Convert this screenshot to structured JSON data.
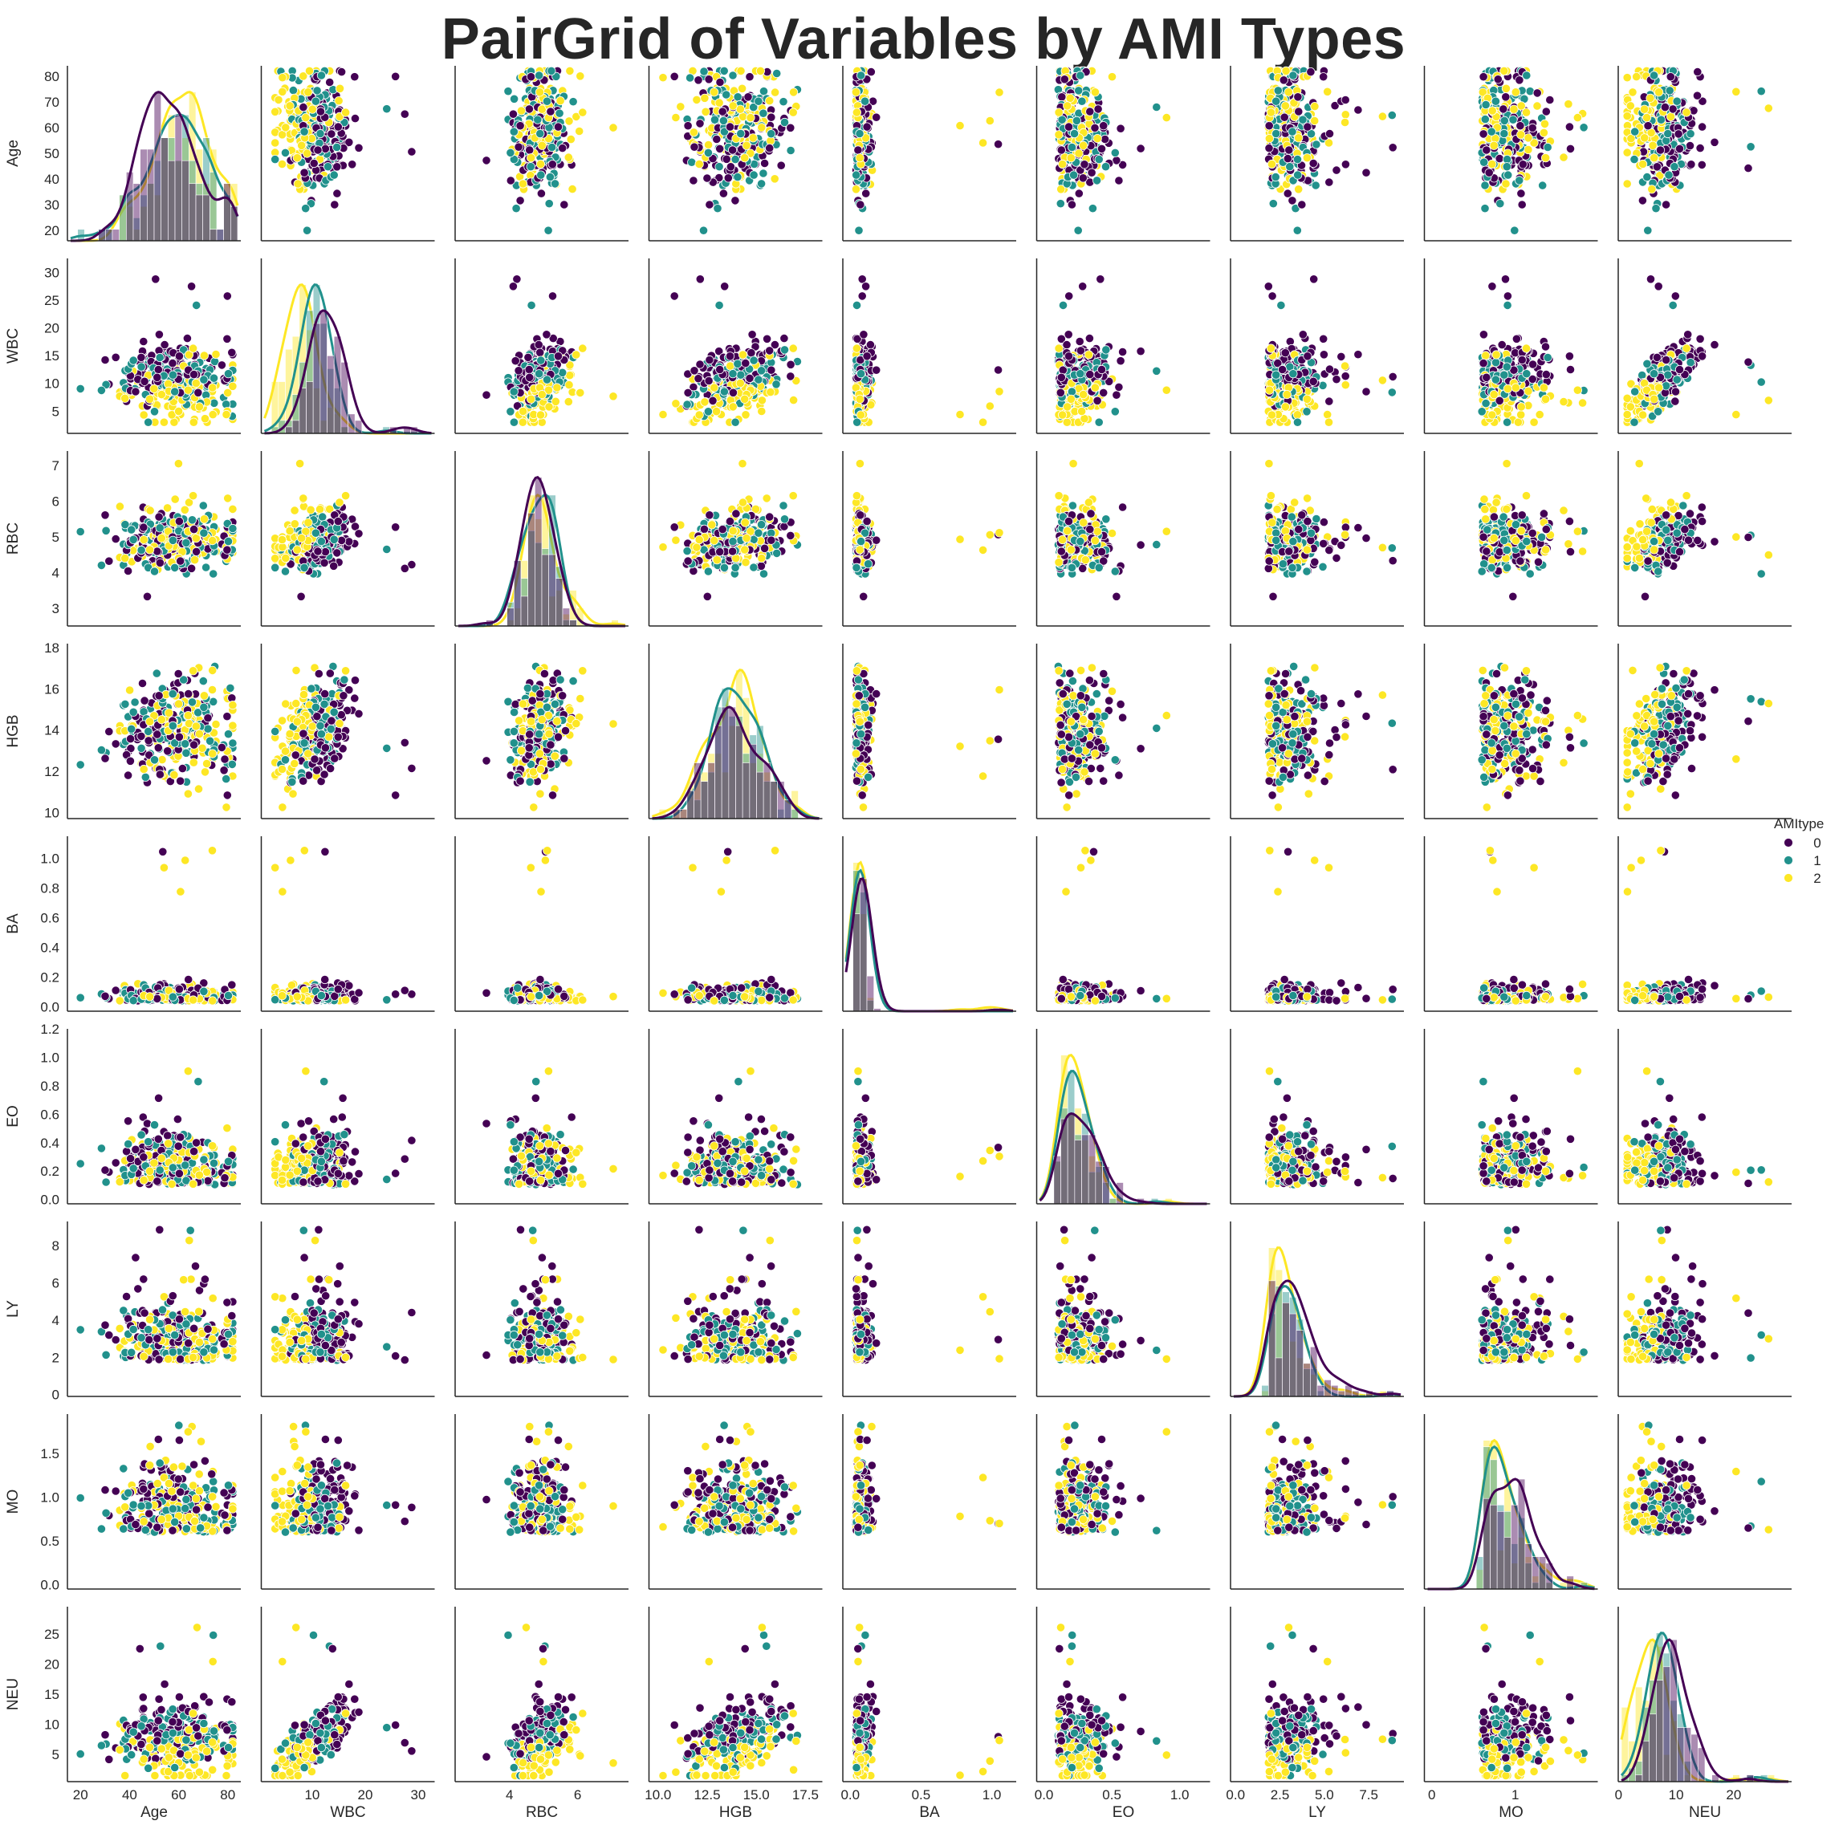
{
  "title": "PairGrid of Variables by AMI Types",
  "chart_data": {
    "type": "scatter",
    "grid": false,
    "hue": "AMItype",
    "legend": {
      "title": "AMItype",
      "placement": "right",
      "entries": [
        "0",
        "1",
        "2"
      ]
    },
    "colors": {
      "0": "#440154",
      "1": "#21918c",
      "2": "#fde725"
    },
    "variables": [
      {
        "name": "Age",
        "range": [
          16,
          84
        ],
        "ticks": [
          20,
          30,
          40,
          50,
          60,
          70,
          80
        ],
        "xticks": [
          20,
          40,
          60,
          80
        ],
        "center": 60,
        "spread": 12,
        "min": 20,
        "max": 82
      },
      {
        "name": "WBC",
        "range": [
          1,
          32.5
        ],
        "ticks": [
          5,
          10,
          15,
          20,
          25,
          30
        ],
        "xticks": [
          10,
          20,
          30
        ],
        "center": 9.5,
        "spread": 3.2,
        "min": 3,
        "max": 31
      },
      {
        "name": "RBC",
        "range": [
          2.5,
          7.4
        ],
        "ticks": [
          3,
          4,
          5,
          6,
          7
        ],
        "xticks": [
          4,
          6
        ],
        "center": 4.8,
        "spread": 0.6,
        "min": 2.7,
        "max": 7.2
      },
      {
        "name": "HGB",
        "range": [
          9.7,
          18.2
        ],
        "ticks": [
          10,
          12,
          14,
          16,
          18
        ],
        "xticks": [
          10.0,
          12.5,
          15.0,
          17.5
        ],
        "xtick_labels": [
          "10.0",
          "12.5",
          "15.0",
          "17.5"
        ],
        "center": 13.8,
        "spread": 1.8,
        "min": 10,
        "max": 17.8
      },
      {
        "name": "BA",
        "range": [
          -0.03,
          1.15
        ],
        "ticks": [
          0.0,
          0.2,
          0.4,
          0.6,
          0.8,
          1.0
        ],
        "xticks": [
          0.0,
          0.5,
          1.0
        ],
        "tick_labels": [
          "0.0",
          "0.2",
          "0.4",
          "0.6",
          "0.8",
          "1.0"
        ],
        "xtick_labels": [
          "0.0",
          "0.5",
          "1.0"
        ],
        "center": 0.06,
        "spread": 0.04,
        "min": 0,
        "max": 1.1
      },
      {
        "name": "EO",
        "range": [
          -0.03,
          1.2
        ],
        "ticks": [
          0.0,
          0.2,
          0.4,
          0.6,
          0.8,
          1.0,
          1.2
        ],
        "xticks": [
          0.0,
          0.5,
          1.0
        ],
        "tick_labels": [
          "0.0",
          "0.2",
          "0.4",
          "0.6",
          "0.8",
          "1.0",
          "1.2"
        ],
        "xtick_labels": [
          "0.0",
          "0.5",
          "1.0"
        ],
        "center": 0.18,
        "spread": 0.15,
        "min": 0,
        "max": 1.15
      },
      {
        "name": "LY",
        "range": [
          -0.1,
          9.3
        ],
        "ticks": [
          0,
          2,
          4,
          6,
          8
        ],
        "xticks": [
          0.0,
          2.5,
          5.0,
          7.5
        ],
        "xtick_labels": [
          "0.0",
          "2.5",
          "5.0",
          "7.5"
        ],
        "center": 2.5,
        "spread": 1.3,
        "min": 0.3,
        "max": 9
      },
      {
        "name": "MO",
        "range": [
          -0.05,
          1.95
        ],
        "ticks": [
          0.0,
          0.5,
          1.0,
          1.5
        ],
        "xticks": [
          0,
          1
        ],
        "tick_labels": [
          "0.0",
          "0.5",
          "1.0",
          "1.5"
        ],
        "center": 0.75,
        "spread": 0.3,
        "min": 0.05,
        "max": 1.9
      },
      {
        "name": "NEU",
        "range": [
          0.5,
          29.5
        ],
        "ticks": [
          5,
          10,
          15,
          20,
          25
        ],
        "xticks": [
          0,
          10,
          20
        ],
        "center": 6.5,
        "spread": 2.8,
        "min": 1.5,
        "max": 29
      }
    ],
    "point_count": 300,
    "diagonal": "histogram with KDE per AMItype"
  }
}
